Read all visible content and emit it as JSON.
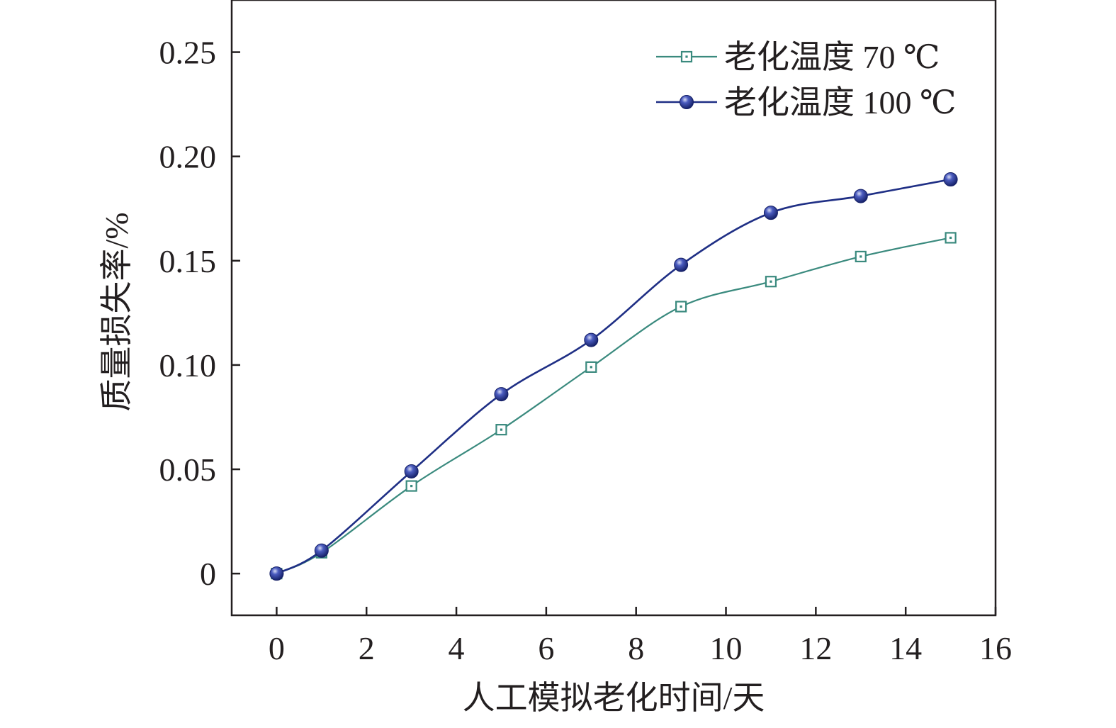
{
  "chart_data": {
    "type": "line",
    "xlabel": "人工模拟老化时间/天",
    "ylabel": "质量损失率/%",
    "xlim": [
      -1,
      16
    ],
    "ylim": [
      -0.02,
      0.275
    ],
    "x_ticks": [
      0,
      2,
      4,
      6,
      8,
      10,
      12,
      14,
      16
    ],
    "x_tick_labels": [
      "0",
      "2",
      "4",
      "6",
      "8",
      "10",
      "12",
      "14",
      "16"
    ],
    "y_ticks": [
      0,
      0.05,
      0.1,
      0.15,
      0.2,
      0.25
    ],
    "y_tick_labels": [
      "0",
      "0.05",
      "0.10",
      "0.15",
      "0.20",
      "0.25"
    ],
    "grid": false,
    "legend_position": "top-right",
    "series": [
      {
        "name": "老化温度 70 ℃",
        "marker": "open-square",
        "color": "#3a8a7e",
        "x": [
          0,
          1,
          3,
          5,
          7,
          9,
          11,
          13,
          15
        ],
        "y": [
          0.0,
          0.01,
          0.042,
          0.069,
          0.099,
          0.128,
          0.14,
          0.152,
          0.161
        ]
      },
      {
        "name": "老化温度 100 ℃",
        "marker": "filled-circle",
        "color": "#1f2f85",
        "x": [
          0,
          1,
          3,
          5,
          7,
          9,
          11,
          13,
          15
        ],
        "y": [
          0.0,
          0.011,
          0.049,
          0.086,
          0.112,
          0.148,
          0.173,
          0.181,
          0.189
        ]
      }
    ]
  }
}
